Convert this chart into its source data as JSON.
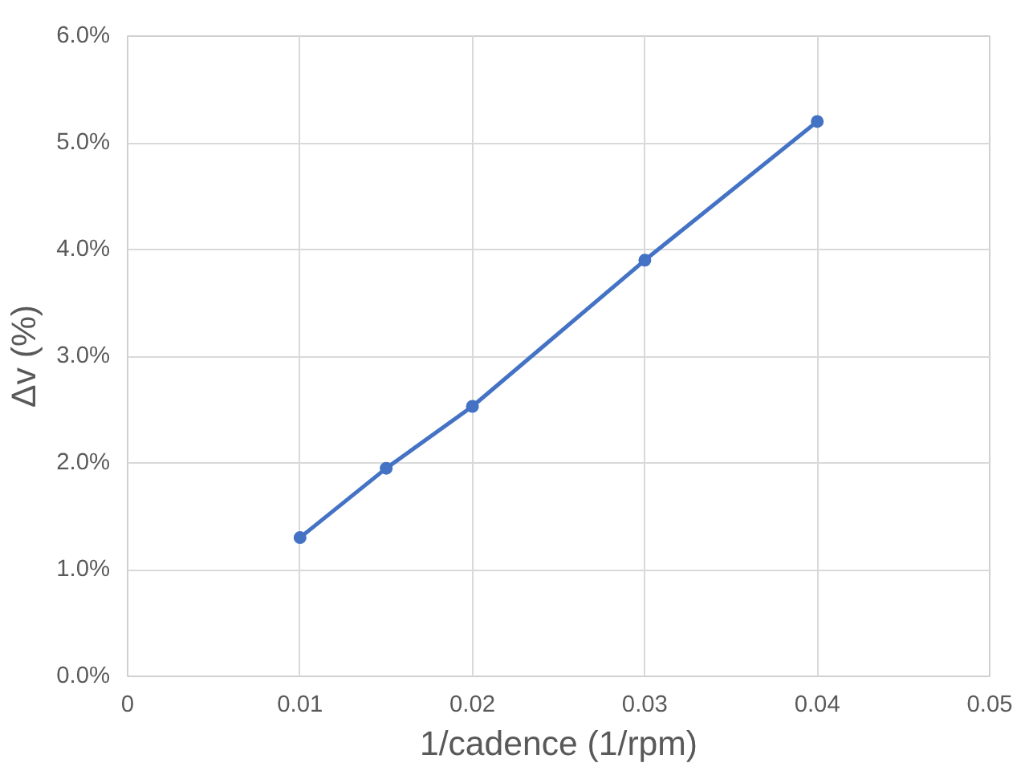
{
  "chart_data": {
    "type": "line",
    "xlabel": "1/cadence (1/rpm)",
    "ylabel": "Δv (%)",
    "x": [
      0.01,
      0.015,
      0.02,
      0.03,
      0.04
    ],
    "series": [
      {
        "color": "#4472c4",
        "values": [
          1.3,
          1.95,
          2.53,
          3.9,
          5.2
        ]
      }
    ],
    "xlim": [
      0,
      0.05
    ],
    "xticks": [
      0,
      0.01,
      0.02,
      0.03,
      0.04,
      0.05
    ],
    "ylim": [
      0,
      6
    ],
    "yticks": [
      {
        "value": 0,
        "label": "0.0%"
      },
      {
        "value": 1,
        "label": "1.0%"
      },
      {
        "value": 2,
        "label": "2.0%"
      },
      {
        "value": 3,
        "label": "3.0%"
      },
      {
        "value": 4,
        "label": "4.0%"
      },
      {
        "value": 5,
        "label": "5.0%"
      },
      {
        "value": 6,
        "label": "6.0%"
      }
    ],
    "grid": true,
    "marker": "circle",
    "line_style": "solid"
  }
}
